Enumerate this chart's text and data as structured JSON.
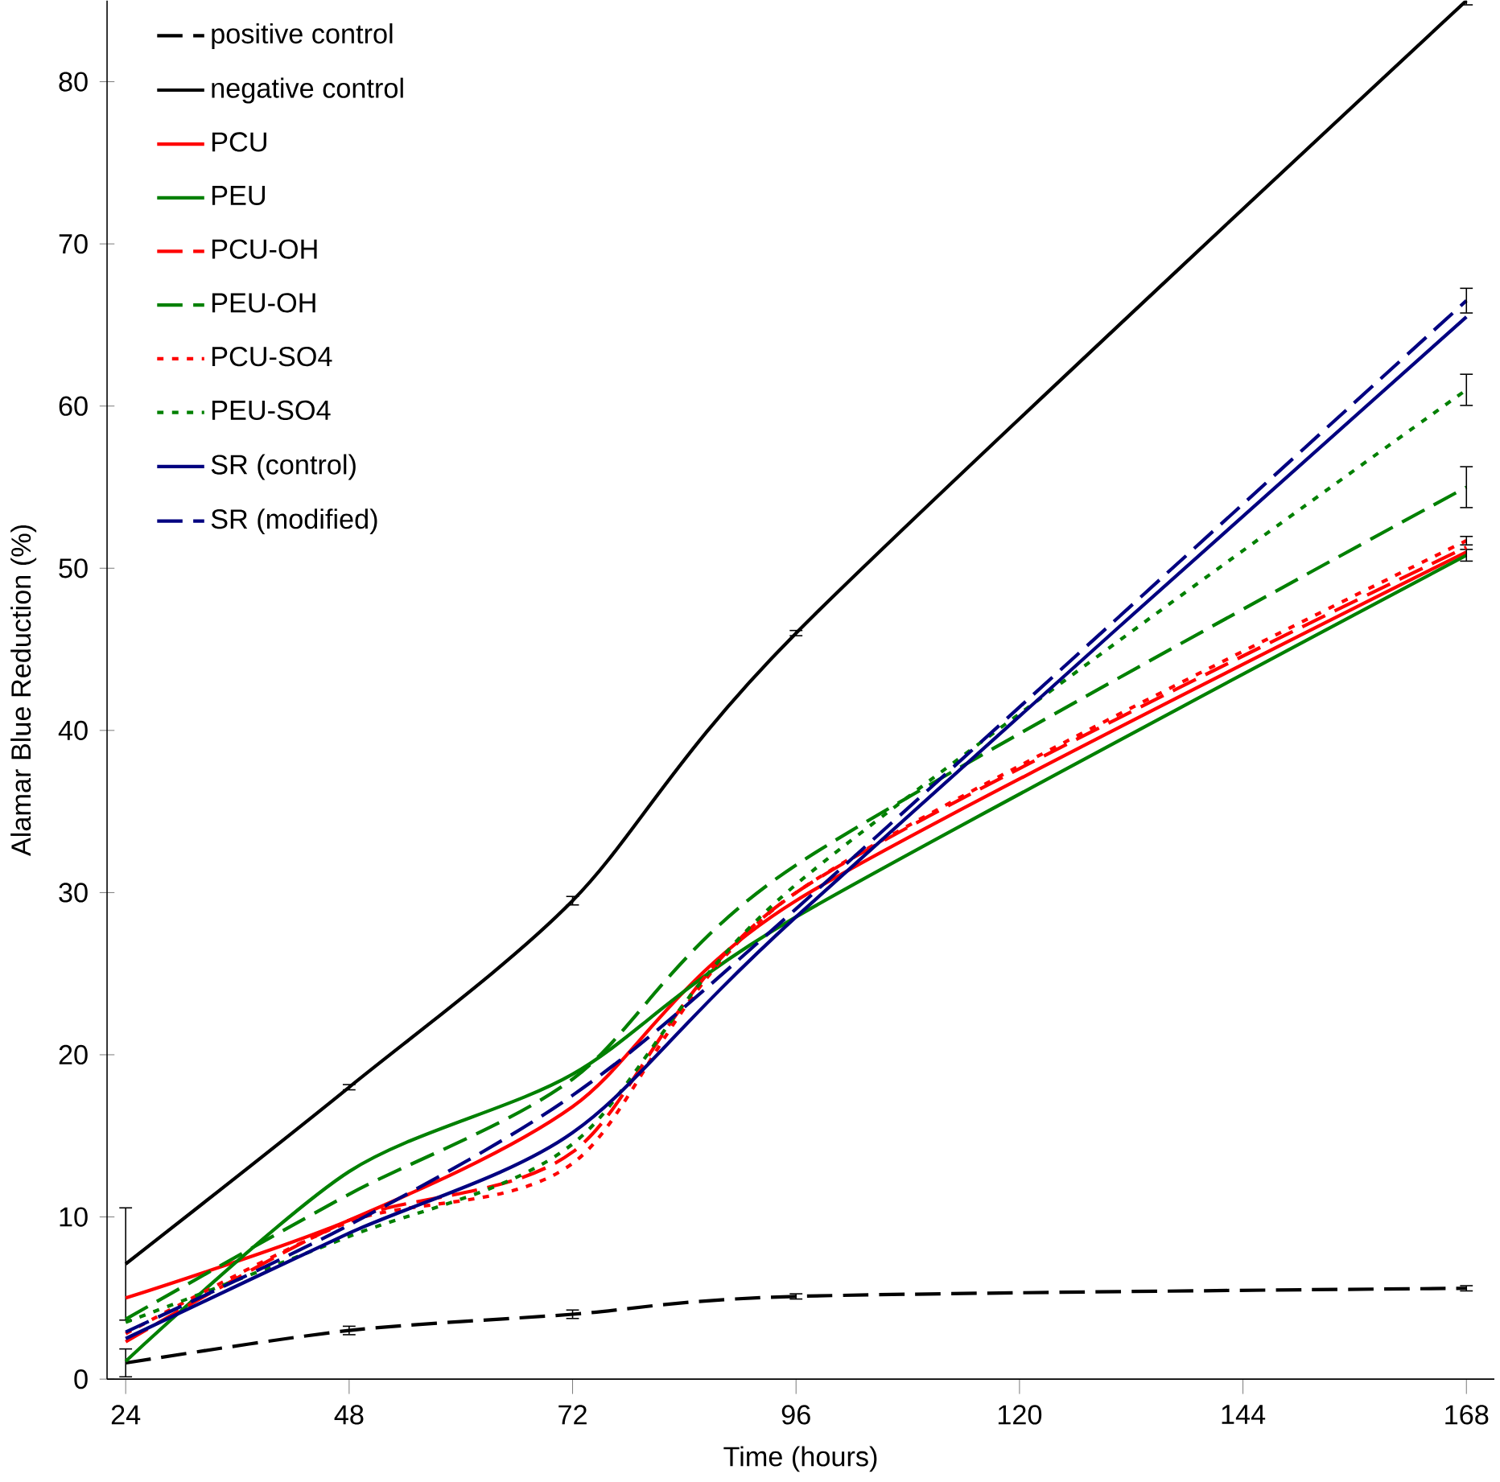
{
  "chart_data": {
    "type": "line",
    "xlabel": "Time (hours)",
    "ylabel": "Alamar Blue Reduction (%)",
    "x": [
      24,
      48,
      72,
      96,
      168
    ],
    "xlim": [
      22,
      171
    ],
    "ylim": [
      0,
      85
    ],
    "xticks": [
      24,
      48,
      72,
      96,
      120,
      144,
      168
    ],
    "yticks": [
      0,
      10,
      20,
      30,
      40,
      50,
      60,
      70,
      80
    ],
    "grid": false,
    "legend": "top left",
    "marker": "none",
    "series": [
      {
        "name": "positive control",
        "color": "#000000",
        "line_style": "dashed",
        "values": [
          1,
          3,
          4,
          5.1,
          5.6
        ],
        "errors": [
          0.9,
          0.3,
          0.3,
          0.2,
          0.2
        ]
      },
      {
        "name": "negative control",
        "color": "#000000",
        "line_style": "solid",
        "values": [
          7.1,
          18,
          29.5,
          46,
          85
        ],
        "errors": [
          3.5,
          0.2,
          0.3,
          0.2,
          0.3
        ]
      },
      {
        "name": "PCU",
        "color": "#ff0000",
        "line_style": "solid",
        "values": [
          5,
          9.8,
          16.8,
          29.5,
          51
        ]
      },
      {
        "name": "PEU",
        "color": "#008000",
        "line_style": "solid",
        "values": [
          1.1,
          12.8,
          18.8,
          28.5,
          50.8
        ],
        "errors": [
          null,
          null,
          null,
          null,
          0.4
        ]
      },
      {
        "name": "PCU-OH",
        "color": "#ff0000",
        "line_style": "dashed",
        "values": [
          2.3,
          9.8,
          14,
          30,
          51.3
        ]
      },
      {
        "name": "PEU-OH",
        "color": "#008000",
        "line_style": "dashed",
        "values": [
          3.7,
          11.4,
          18.5,
          31.7,
          55
        ],
        "errors": [
          null,
          null,
          null,
          null,
          1.3
        ]
      },
      {
        "name": "PCU-SO4",
        "color": "#ff0000",
        "line_style": "dotted",
        "values": [
          2.8,
          9.7,
          13.3,
          30,
          51.7
        ],
        "errors": [
          null,
          null,
          null,
          null,
          0.3
        ]
      },
      {
        "name": "PEU-SO4",
        "color": "#008000",
        "line_style": "dotted",
        "values": [
          3.5,
          8.8,
          14.5,
          30.5,
          61
        ],
        "errors": [
          null,
          null,
          null,
          null,
          1
        ]
      },
      {
        "name": "SR (control)",
        "color": "#000080",
        "line_style": "solid",
        "values": [
          2.5,
          9,
          15.2,
          28.5,
          65.5
        ]
      },
      {
        "name": "SR (modified)",
        "color": "#000080",
        "line_style": "dashed",
        "values": [
          2.9,
          9.5,
          17.5,
          29,
          66.5
        ],
        "errors": [
          null,
          null,
          null,
          null,
          0.8
        ]
      }
    ]
  }
}
